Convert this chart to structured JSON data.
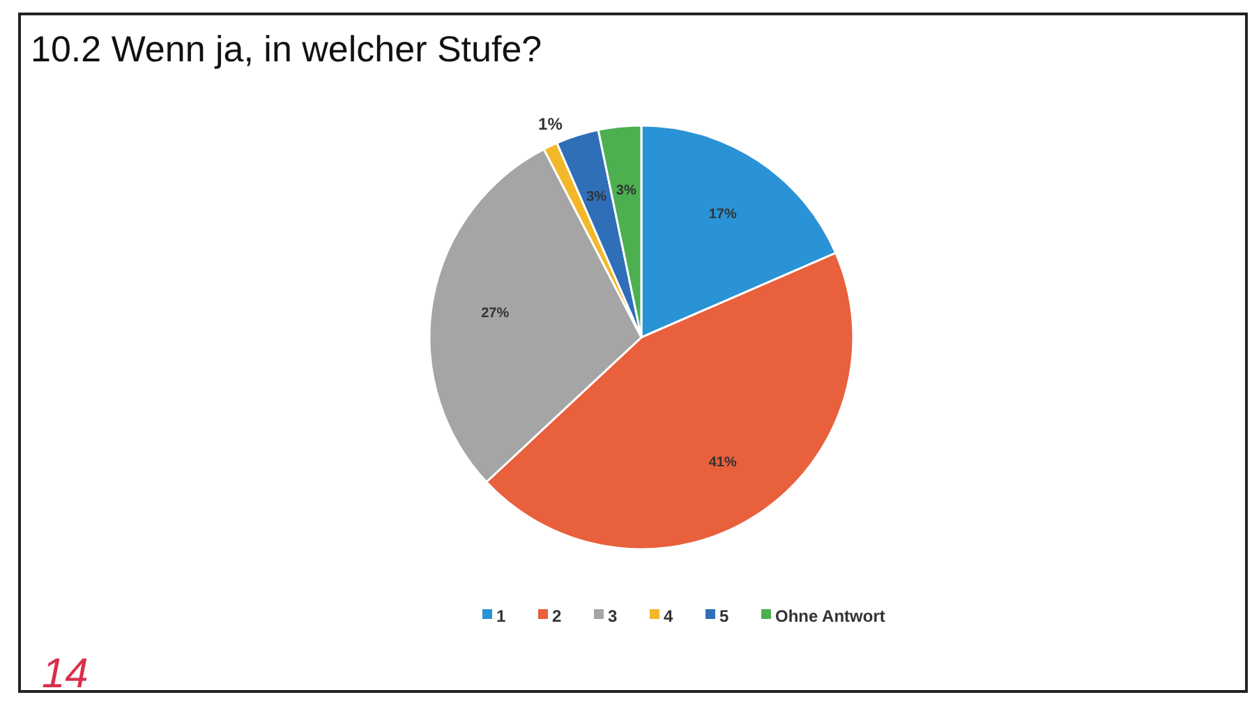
{
  "chart_data": {
    "type": "pie",
    "title": "10.2 Wenn ja, in welcher Stufe?",
    "categories": [
      "1",
      "2",
      "3",
      "4",
      "5",
      "Ohne Antwort"
    ],
    "values": [
      17,
      41,
      27,
      1,
      3,
      3
    ],
    "value_labels": [
      "17%",
      "41%",
      "27%",
      "1%",
      "3%",
      "3%"
    ],
    "colors": [
      "#2a93d5",
      "#e8603c",
      "#a5a5a5",
      "#f2b829",
      "#2f6fb8",
      "#4caf50"
    ],
    "legend": "bottom",
    "annotations": [
      "14"
    ]
  }
}
